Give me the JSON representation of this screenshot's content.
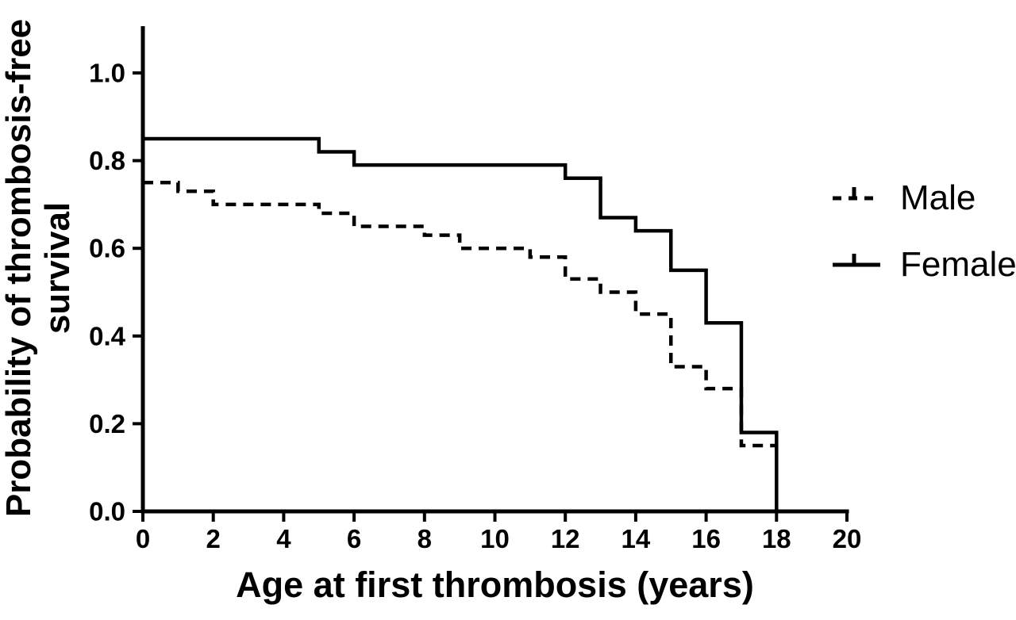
{
  "figure": {
    "background_color": "#ffffff",
    "line_color": "#000000"
  },
  "legend": {
    "position": "right",
    "items": [
      {
        "label": "Male",
        "line_style": "dashed",
        "symbol": "dashed-line-with-censor-tick"
      },
      {
        "label": "Female",
        "line_style": "solid",
        "symbol": "solid-line-with-censor-tick"
      }
    ]
  },
  "chart_data": {
    "type": "line",
    "subtype": "kaplan-meier-step-survival",
    "title": "",
    "xlabel": "Age at first thrombosis (years)",
    "ylabel": "Probability of thrombosis-free survival",
    "ylabel_lines": [
      "Probability of thrombosis-free",
      "survival"
    ],
    "xlim": [
      0,
      20
    ],
    "ylim": [
      0,
      1.0
    ],
    "xticks": [
      0,
      2,
      4,
      6,
      8,
      10,
      12,
      14,
      16,
      18,
      20
    ],
    "yticks": [
      0.0,
      0.2,
      0.4,
      0.6,
      0.8,
      1.0
    ],
    "grid": false,
    "legend_position": "right",
    "series": [
      {
        "name": "Male",
        "line_style": "dashed",
        "color": "#000000",
        "survival_steps": [
          [
            0,
            0.75
          ],
          [
            1,
            0.73
          ],
          [
            2,
            0.7
          ],
          [
            5,
            0.68
          ],
          [
            6,
            0.65
          ],
          [
            8,
            0.63
          ],
          [
            9,
            0.6
          ],
          [
            11,
            0.58
          ],
          [
            12,
            0.53
          ],
          [
            13,
            0.5
          ],
          [
            14,
            0.45
          ],
          [
            15,
            0.33
          ],
          [
            16,
            0.28
          ],
          [
            17,
            0.15
          ]
        ],
        "end_age": 18,
        "drops_to_zero_at_end": false
      },
      {
        "name": "Female",
        "line_style": "solid",
        "color": "#000000",
        "survival_steps": [
          [
            0,
            0.85
          ],
          [
            5,
            0.82
          ],
          [
            6,
            0.79
          ],
          [
            12,
            0.76
          ],
          [
            13,
            0.67
          ],
          [
            14,
            0.64
          ],
          [
            15,
            0.55
          ],
          [
            16,
            0.43
          ],
          [
            17,
            0.18
          ]
        ],
        "end_age": 18,
        "drops_to_zero_at_end": true
      }
    ]
  }
}
